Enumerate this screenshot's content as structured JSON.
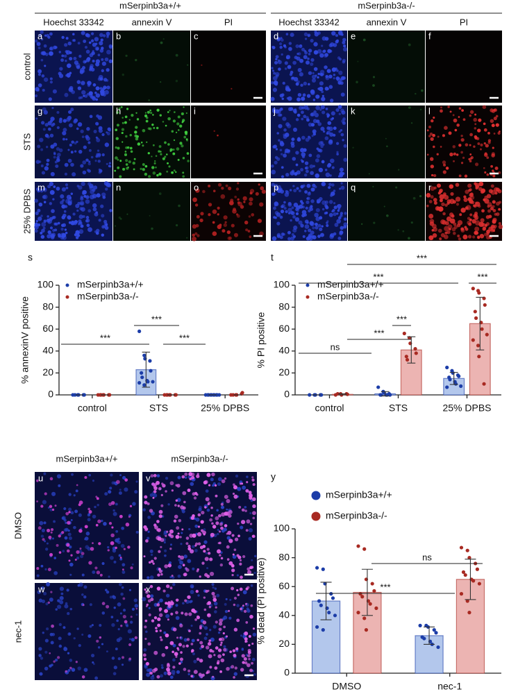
{
  "figure": {
    "top": {
      "genotypes": [
        "mSerpinb3a+/+",
        "mSerpinb3a-/-"
      ],
      "stains": [
        "Hoechst 33342",
        "annexin V",
        "PI",
        "Hoechst 33342",
        "annexin V",
        "PI"
      ],
      "conditions": [
        "control",
        "STS",
        "25% DPBS"
      ],
      "panel_letters": [
        "a",
        "b",
        "c",
        "d",
        "e",
        "f",
        "g",
        "h",
        "i",
        "j",
        "k",
        "l",
        "m",
        "n",
        "o",
        "p",
        "q",
        "r"
      ]
    },
    "bottom": {
      "genotypes": [
        "mSerpinb3a+/+",
        "mSerpinb3a-/-"
      ],
      "conditions": [
        "DMSO",
        "nec-1"
      ],
      "panel_letters": [
        "u",
        "v",
        "w",
        "x"
      ]
    }
  },
  "chart_data": [
    {
      "type": "bar",
      "panel_label": "s",
      "ylabel": "% annexinV positive",
      "categories": [
        "control",
        "STS",
        "25% DPBS"
      ],
      "series": [
        {
          "name": "mSerpinb3a+/+",
          "color": "#1c3da8",
          "values": [
            0,
            23,
            0
          ],
          "errors": [
            0,
            16,
            0
          ],
          "points": [
            [
              0,
              0,
              0,
              0,
              0,
              0
            ],
            [
              58,
              36,
              33,
              31,
              22,
              20,
              16,
              13,
              12,
              12,
              11,
              9
            ],
            [
              0,
              0,
              0,
              0,
              0,
              0,
              0,
              0,
              0,
              0
            ]
          ]
        },
        {
          "name": "mSerpinb3a-/-",
          "color": "#a82a22",
          "values": [
            0,
            0,
            0
          ],
          "errors": [
            0,
            0,
            0
          ],
          "points": [
            [
              0,
              0,
              0,
              0,
              0,
              0,
              0
            ],
            [
              0,
              0,
              0,
              0,
              0,
              0,
              0
            ],
            [
              0,
              0,
              0,
              1,
              2,
              0
            ]
          ]
        }
      ],
      "ylim": [
        0,
        100
      ],
      "yticks": [
        0,
        20,
        40,
        60,
        80,
        100
      ],
      "annotations": [
        "***",
        "***",
        "***"
      ]
    },
    {
      "type": "bar",
      "panel_label": "t",
      "ylabel": "% PI positive",
      "categories": [
        "control",
        "STS",
        "25% DPBS"
      ],
      "series": [
        {
          "name": "mSerpinb3a+/+",
          "color": "#1c3da8",
          "values": [
            0,
            1,
            15
          ],
          "errors": [
            0,
            2,
            5.5
          ],
          "points": [
            [
              0,
              0,
              0,
              0,
              0
            ],
            [
              7,
              3,
              2,
              1,
              0,
              0,
              0,
              0,
              0
            ],
            [
              25,
              22,
              20,
              18,
              17,
              16,
              14,
              12,
              10,
              8,
              7
            ]
          ]
        },
        {
          "name": "mSerpinb3a-/-",
          "color": "#a82a22",
          "values": [
            0.5,
            41,
            65
          ],
          "errors": [
            0.5,
            12,
            24
          ],
          "points": [
            [
              0,
              1,
              0,
              1,
              0.5,
              1
            ],
            [
              56,
              52,
              47,
              42,
              38,
              35,
              32
            ],
            [
              97,
              95,
              93,
              88,
              82,
              76,
              70,
              66,
              60,
              55,
              50,
              45,
              35,
              10
            ]
          ]
        }
      ],
      "ylim": [
        0,
        100
      ],
      "yticks": [
        0,
        20,
        40,
        60,
        80,
        100
      ],
      "annotations": [
        "ns",
        "***",
        "***",
        "***",
        "***",
        "***"
      ]
    },
    {
      "type": "bar",
      "panel_label": "y",
      "ylabel": "% dead (PI positive)",
      "categories": [
        "DMSO",
        "nec-1"
      ],
      "series": [
        {
          "name": "mSerpinb3a+/+",
          "color": "#1c3da8",
          "values": [
            50,
            26
          ],
          "errors": [
            13,
            6
          ],
          "points": [
            [
              73,
              72,
              62,
              55,
              52,
              50,
              47,
              45,
              42,
              40,
              32,
              30
            ],
            [
              33,
              33,
              32,
              30,
              28,
              25,
              24,
              22,
              20,
              18
            ]
          ]
        },
        {
          "name": "mSerpinb3a-/-",
          "color": "#a82a22",
          "values": [
            56,
            65
          ],
          "errors": [
            16,
            14
          ],
          "points": [
            [
              88,
              86,
              65,
              62,
              57,
              55,
              53,
              50,
              48,
              45,
              42,
              38,
              30
            ],
            [
              87,
              85,
              80,
              76,
              72,
              70,
              68,
              65,
              64,
              62,
              55,
              50,
              42
            ]
          ]
        }
      ],
      "ylim": [
        0,
        100
      ],
      "yticks": [
        0,
        20,
        40,
        60,
        80,
        100
      ],
      "annotations": [
        "***",
        "ns"
      ]
    }
  ]
}
